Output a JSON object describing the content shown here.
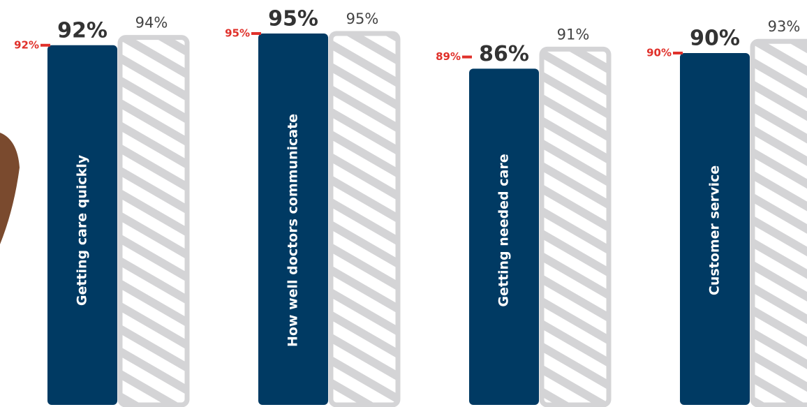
{
  "chart_data": {
    "type": "bar",
    "categories": [
      "Getting care quickly",
      "How well doctors communicate",
      "Getting needed care",
      "Customer service"
    ],
    "series": [
      {
        "color": "#003a63",
        "values": [
          92,
          95,
          86,
          90
        ],
        "value_labels": [
          "92%",
          "95%",
          "86%",
          "90%"
        ]
      },
      {
        "color": "#d4d4d6",
        "values": [
          94,
          95,
          91,
          93
        ],
        "value_labels": [
          "94%",
          "95%",
          "91%",
          "93%"
        ]
      },
      {
        "color": "#e0312b",
        "style": "marker",
        "values": [
          92,
          95,
          89,
          90
        ],
        "value_labels": [
          "92%",
          "95%",
          "89%",
          "90%"
        ]
      }
    ]
  }
}
